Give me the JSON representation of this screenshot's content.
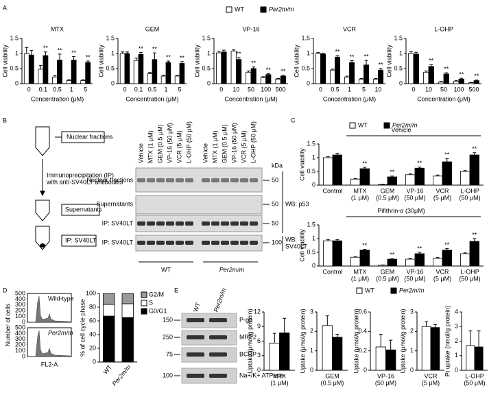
{
  "figure": {
    "panels": [
      "A",
      "B",
      "C",
      "D",
      "E"
    ],
    "panel_b": {
      "diagram": [
        "Nuclear fractions",
        "Immunoprecipitation (IP)",
        "with anti-SV40LT antibodies",
        "Supernatants",
        "IP: SV40LT"
      ],
      "lanes": [
        "Vehicle",
        "MTX (1 μM)",
        "GEM (0.5 μM)",
        "VP-16 (50 μM)",
        "VCR (5 μM)",
        "L-OHP (50 μM)"
      ],
      "groups": [
        "WT",
        "Per2m/m"
      ],
      "rows": [
        "Nuclear fractions",
        "Supernatants",
        "IP: SV40LT",
        "IP: SV40LT"
      ],
      "kda": "kDa",
      "markers": [
        "50",
        "50",
        "50",
        "100"
      ],
      "wb": [
        "WB: p53",
        "WB:",
        "SV40LT"
      ]
    },
    "panel_d": {
      "ylabel": "Number of cells",
      "xlabel": "FL2-A",
      "yticks": [
        "0",
        "100",
        "200",
        "300",
        "400",
        "500"
      ],
      "samples": [
        "Wild-type",
        "Per2m/m"
      ]
    },
    "panel_e": {
      "lanes": [
        "WT",
        "Per2m/m"
      ],
      "proteins": [
        "P-gp",
        "MRP2",
        "BCRP",
        "Na+/K+ ATPase"
      ],
      "markers": [
        "150",
        "250",
        "75",
        "100"
      ]
    }
  },
  "chart_data": [
    {
      "type": "bar",
      "title": "MTX",
      "ylabel": "Cell viability",
      "xlabel": "Concentration (μM)",
      "categories": [
        "0",
        "0.1",
        "0.5",
        "1",
        "5"
      ],
      "ylim": [
        0,
        1.5
      ],
      "yticks": [
        0,
        0.5,
        1,
        1.5
      ],
      "series": [
        {
          "name": "WT",
          "color": "#ffffff",
          "values": [
            1.0,
            0.48,
            0.22,
            0.1,
            0.1
          ],
          "errors": [
            0.2,
            0.12,
            0.05,
            0.03,
            0.03
          ]
        },
        {
          "name": "Per2m/m",
          "color": "#000000",
          "values": [
            0.95,
            0.93,
            0.78,
            0.78,
            0.7
          ],
          "errors": [
            0.15,
            0.12,
            0.2,
            0.12,
            0.05
          ],
          "significance": [
            null,
            "**",
            "**",
            "**",
            "**"
          ]
        }
      ]
    },
    {
      "type": "bar",
      "title": "GEM",
      "ylabel": "Cell viability",
      "xlabel": "Concentration (μM)",
      "categories": [
        "0",
        "0.1",
        "0.5",
        "1",
        "5"
      ],
      "ylim": [
        0,
        1.5
      ],
      "yticks": [
        0,
        0.5,
        1,
        1.5
      ],
      "series": [
        {
          "name": "WT",
          "color": "#ffffff",
          "values": [
            1.0,
            0.77,
            0.33,
            0.25,
            0.25
          ],
          "errors": [
            0.05,
            0.08,
            0.04,
            0.03,
            0.03
          ]
        },
        {
          "name": "Per2m/m",
          "color": "#000000",
          "values": [
            1.0,
            0.97,
            0.8,
            0.7,
            0.67
          ],
          "errors": [
            0.05,
            0.06,
            0.22,
            0.05,
            0.06
          ],
          "significance": [
            null,
            "**",
            "**",
            "**",
            "**"
          ]
        }
      ]
    },
    {
      "type": "bar",
      "title": "VP-16",
      "ylabel": "Cell viability",
      "xlabel": "Concentration (μM)",
      "categories": [
        "0",
        "10",
        "50",
        "100",
        "500"
      ],
      "ylim": [
        0,
        1.5
      ],
      "yticks": [
        0,
        0.5,
        1,
        1.5
      ],
      "series": [
        {
          "name": "WT",
          "color": "#ffffff",
          "values": [
            1.02,
            1.08,
            0.38,
            0.2,
            0.15
          ],
          "errors": [
            0.05,
            0.04,
            0.04,
            0.03,
            0.02
          ]
        },
        {
          "name": "Per2m/m",
          "color": "#000000",
          "values": [
            1.05,
            0.8,
            0.5,
            0.3,
            0.25
          ],
          "errors": [
            0.06,
            0.06,
            0.05,
            0.03,
            0.03
          ],
          "significance": [
            null,
            "**",
            "**",
            "**",
            "**"
          ]
        }
      ]
    },
    {
      "type": "bar",
      "title": "VCR",
      "ylabel": "Cell viability",
      "xlabel": "Concentration (μM)",
      "categories": [
        "0",
        "0.5",
        "1",
        "5",
        "10"
      ],
      "ylim": [
        0,
        1.5
      ],
      "yticks": [
        0,
        0.5,
        1,
        1.5
      ],
      "series": [
        {
          "name": "WT",
          "color": "#ffffff",
          "values": [
            1.0,
            0.45,
            0.22,
            0.15,
            0.15
          ],
          "errors": [
            0.03,
            0.03,
            0.03,
            0.02,
            0.02
          ]
        },
        {
          "name": "Per2m/m",
          "color": "#000000",
          "values": [
            0.98,
            0.88,
            0.7,
            0.62,
            0.45
          ],
          "errors": [
            0.03,
            0.05,
            0.06,
            0.15,
            0.05
          ],
          "significance": [
            null,
            "**",
            "**",
            "**",
            "**"
          ]
        }
      ]
    },
    {
      "type": "bar",
      "title": "L-OHP",
      "ylabel": "Cell viability",
      "xlabel": "Concentration (μM)",
      "categories": [
        "0",
        "10",
        "50",
        "100",
        "500"
      ],
      "ylim": [
        0,
        1.5
      ],
      "yticks": [
        0,
        0.5,
        1,
        1.5
      ],
      "series": [
        {
          "name": "WT",
          "color": "#ffffff",
          "values": [
            1.0,
            0.38,
            0.05,
            0.08,
            0.03
          ],
          "errors": [
            0.06,
            0.04,
            0.02,
            0.02,
            0.01
          ],
          "significance": null
        },
        {
          "name": "Per2m/m",
          "color": "#000000",
          "values": [
            0.98,
            0.57,
            0.32,
            0.15,
            0.1
          ],
          "errors": [
            0.06,
            0.06,
            0.04,
            0.03,
            0.02
          ],
          "significance": [
            null,
            "**",
            "**",
            "**",
            "**"
          ]
        }
      ]
    },
    {
      "type": "bar",
      "title": "Vehicle",
      "ylabel": "Cell viability",
      "categories": [
        "Control",
        "MTX",
        "GEM",
        "VP-16",
        "VCR",
        "L-OHP"
      ],
      "category_notes": [
        null,
        "(1 μM)",
        "(0.5 μM)",
        "(50 μM)",
        "(5 μM)",
        "(50 μM)"
      ],
      "ylim": [
        0,
        1.5
      ],
      "yticks": [
        0,
        0.5,
        1,
        1.5
      ],
      "series": [
        {
          "name": "WT",
          "color": "#ffffff",
          "values": [
            1.0,
            0.22,
            0.02,
            0.38,
            0.33,
            0.5
          ],
          "errors": [
            0.04,
            0.02,
            0.01,
            0.03,
            0.04,
            0.03
          ]
        },
        {
          "name": "Per2m/m",
          "color": "#000000",
          "values": [
            1.1,
            0.6,
            0.3,
            0.62,
            0.85,
            1.1
          ],
          "errors": [
            0.06,
            0.05,
            0.03,
            0.04,
            0.12,
            0.08
          ],
          "significance": [
            null,
            "**",
            "**",
            "**",
            "**",
            "**"
          ]
        }
      ]
    },
    {
      "type": "bar",
      "title": "Pifithrin-α (30μM)",
      "ylabel": "Cell viability",
      "categories": [
        "Control",
        "MTX",
        "GEM",
        "VP-16",
        "VCR",
        "L-OHP"
      ],
      "category_notes": [
        null,
        "(1 μM)",
        "(0.5 μM)",
        "(50 μM)",
        "(5 μM)",
        "(50 μM)"
      ],
      "ylim": [
        0,
        1.5
      ],
      "yticks": [
        0,
        0.5,
        1,
        1.5
      ],
      "series": [
        {
          "name": "WT",
          "color": "#ffffff",
          "values": [
            0.92,
            0.32,
            0.03,
            0.25,
            0.28,
            0.45
          ],
          "errors": [
            0.04,
            0.02,
            0.01,
            0.03,
            0.03,
            0.03
          ]
        },
        {
          "name": "Per2m/m",
          "color": "#000000",
          "values": [
            0.92,
            0.58,
            0.25,
            0.45,
            0.58,
            0.9
          ],
          "errors": [
            0.04,
            0.03,
            0.02,
            0.05,
            0.06,
            0.1
          ],
          "significance": [
            null,
            "**",
            "**",
            "**",
            "**",
            "**"
          ]
        }
      ]
    },
    {
      "type": "stacked_bar",
      "ylabel": "% of cell cycle phase",
      "categories": [
        "WT",
        "Per2m/m"
      ],
      "ylim": [
        0,
        100
      ],
      "yticks": [
        0,
        20,
        40,
        60,
        80,
        100
      ],
      "series": [
        {
          "name": "G0/G1",
          "color": "#000000",
          "values": [
            67,
            65
          ]
        },
        {
          "name": "S",
          "color": "#ffffff",
          "values": [
            17,
            20
          ]
        },
        {
          "name": "G2/M",
          "color": "#999999",
          "values": [
            16,
            15
          ]
        }
      ]
    },
    {
      "type": "bar",
      "ylabel": "Uptake (μmol/g protein)",
      "categories": [
        "MTX"
      ],
      "category_notes": [
        "(1 μM)"
      ],
      "ylim": [
        0,
        12
      ],
      "yticks": [
        0,
        3,
        6,
        9,
        12
      ],
      "series": [
        {
          "name": "WT",
          "color": "#ffffff",
          "values": [
            5.6
          ],
          "errors": [
            2.0
          ]
        },
        {
          "name": "Per2m/m",
          "color": "#000000",
          "values": [
            7.7
          ],
          "errors": [
            3.0
          ]
        }
      ]
    },
    {
      "type": "bar",
      "ylabel": "Uptake (μmol/g protein)",
      "categories": [
        "GEM"
      ],
      "category_notes": [
        "(0.5 μM)"
      ],
      "ylim": [
        0,
        3
      ],
      "yticks": [
        0,
        1,
        2,
        3
      ],
      "series": [
        {
          "name": "WT",
          "color": "#ffffff",
          "values": [
            2.3
          ],
          "errors": [
            0.5
          ]
        },
        {
          "name": "Per2m/m",
          "color": "#000000",
          "values": [
            1.7
          ],
          "errors": [
            0.15
          ]
        }
      ]
    },
    {
      "type": "bar",
      "ylabel": "Uptake (μmol/g protein)",
      "categories": [
        "VP-16"
      ],
      "category_notes": [
        "(50 μM)"
      ],
      "ylim": [
        0,
        0.6
      ],
      "yticks": [
        0,
        0.2,
        0.4,
        0.6
      ],
      "series": [
        {
          "name": "WT",
          "color": "#ffffff",
          "values": [
            0.24
          ],
          "errors": [
            0.13
          ]
        },
        {
          "name": "Per2m/m",
          "color": "#000000",
          "values": [
            0.21
          ],
          "errors": [
            0.1
          ]
        }
      ]
    },
    {
      "type": "bar",
      "ylabel": "Uptake (μmol/g protein)",
      "categories": [
        "VCR"
      ],
      "category_notes": [
        "(5 μM)"
      ],
      "ylim": [
        0,
        3
      ],
      "yticks": [
        0,
        1,
        2,
        3
      ],
      "series": [
        {
          "name": "WT",
          "color": "#ffffff",
          "values": [
            2.25
          ],
          "errors": [
            0.25
          ]
        },
        {
          "name": "Per2m/m",
          "color": "#000000",
          "values": [
            2.2
          ],
          "errors": [
            0.15
          ]
        }
      ]
    },
    {
      "type": "bar",
      "ylabel": "Pt uptake (nmol/g protein)",
      "categories": [
        "L-OHP"
      ],
      "category_notes": [
        "(50 μM)"
      ],
      "ylim": [
        0,
        4
      ],
      "yticks": [
        0,
        1,
        2,
        3,
        4
      ],
      "series": [
        {
          "name": "WT",
          "color": "#ffffff",
          "values": [
            1.7
          ],
          "errors": [
            1.0
          ]
        },
        {
          "name": "Per2m/m",
          "color": "#000000",
          "values": [
            1.6
          ],
          "errors": [
            1.1
          ]
        }
      ]
    }
  ]
}
